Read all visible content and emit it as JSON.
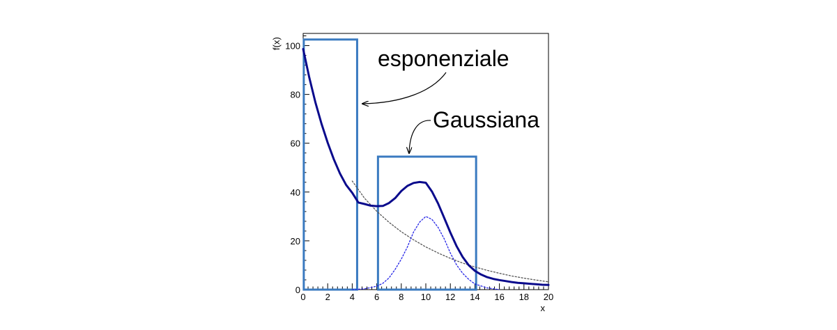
{
  "chart_data": {
    "type": "line",
    "title": "",
    "xlabel": "x",
    "ylabel": "f(x)",
    "xlim": [
      0,
      20
    ],
    "ylim": [
      0,
      105
    ],
    "grid": false,
    "x_ticks": [
      0,
      2,
      4,
      6,
      8,
      10,
      12,
      14,
      16,
      18,
      20
    ],
    "y_ticks": [
      0,
      20,
      40,
      60,
      80,
      100
    ],
    "series": [
      {
        "name": "",
        "style": "solid",
        "color": "#0a0a8c",
        "x": [
          0,
          0.5,
          1,
          1.5,
          2,
          2.5,
          3,
          3.5,
          4,
          4.5,
          5,
          5.5,
          6,
          6.5,
          7,
          7.5,
          8,
          8.5,
          9,
          9.5,
          10,
          10.5,
          11,
          11.5,
          12,
          12.5,
          13,
          13.5,
          14,
          14.5,
          15,
          15.5,
          16,
          16.5,
          17,
          17.5,
          18,
          18.5,
          19,
          19.5,
          20
        ],
        "y": [
          98.6,
          86.9,
          76.7,
          67.9,
          60.2,
          53.4,
          47.6,
          42.9,
          39.7,
          35.7,
          35.1,
          34.4,
          34.2,
          34.3,
          35.5,
          37.5,
          40.4,
          42.5,
          43.7,
          44.1,
          43.8,
          40.2,
          35.3,
          29.4,
          23.4,
          17.9,
          13.4,
          10.0,
          7.7,
          6.2,
          5.1,
          4.4,
          3.9,
          3.5,
          3.1,
          2.8,
          2.6,
          2.4,
          2.2,
          2.0,
          1.9
        ]
      },
      {
        "name": "",
        "style": "dotted",
        "color": "#555555",
        "x": [
          4,
          5,
          6,
          7,
          8,
          9,
          10,
          11,
          12,
          13,
          14,
          15,
          16,
          17,
          18,
          19,
          20
        ],
        "y": [
          44.5,
          37.5,
          32.1,
          27.6,
          23.7,
          20.4,
          17.5,
          15.0,
          12.8,
          10.9,
          9.3,
          7.9,
          6.7,
          5.6,
          4.7,
          3.9,
          3.2
        ]
      },
      {
        "name": "",
        "style": "dotted",
        "color": "#2323e6",
        "x": [
          4,
          5,
          6,
          6.5,
          7,
          7.5,
          8,
          8.5,
          9,
          9.5,
          10,
          10.5,
          11,
          11.5,
          12,
          12.5,
          13,
          13.5,
          14,
          15,
          16
        ],
        "y": [
          0.0,
          0.3,
          1.4,
          2.6,
          4.8,
          8.3,
          12.5,
          17.5,
          23.6,
          27.7,
          30.0,
          28.8,
          25.5,
          20.8,
          15.0,
          10.2,
          6.7,
          4.2,
          2.3,
          0.7,
          0.0
        ]
      }
    ],
    "highlight_boxes": [
      {
        "x": [
          0.05,
          4.4
        ],
        "y": [
          0,
          102.5
        ]
      },
      {
        "x": [
          6.1,
          14.1
        ],
        "y": [
          0,
          54.5
        ]
      }
    ],
    "annotations": [
      {
        "text": "esponenziale",
        "target": [
          4.75,
          77
        ]
      },
      {
        "text": "Gaussiana",
        "target": [
          8.8,
          56
        ]
      }
    ]
  }
}
